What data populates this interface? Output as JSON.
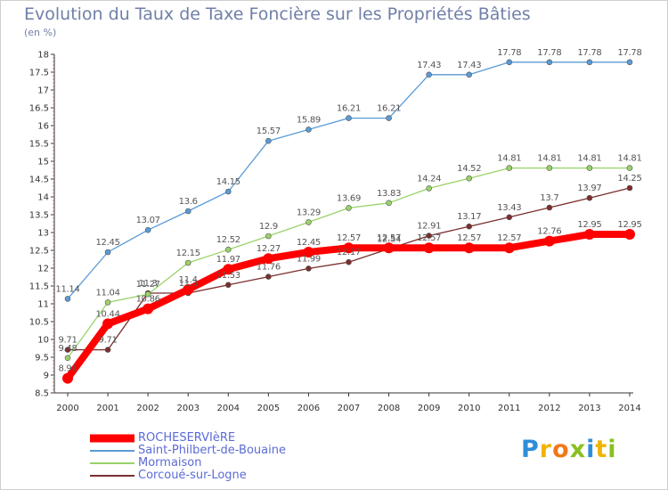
{
  "title": "Evolution du Taux de Taxe Foncière sur les Propriétés Bâties",
  "unit": "(en %)",
  "logo": {
    "letters": [
      "P",
      "r",
      "o",
      "x",
      "i",
      "t",
      "i"
    ],
    "colors": [
      "#2e8ed8",
      "#f0b400",
      "#f07818",
      "#88c020",
      "#2e8ed8",
      "#f0b400",
      "#88c020"
    ]
  },
  "chart_data": {
    "type": "line",
    "title": "Evolution du Taux de Taxe Foncière sur les Propriétés Bâties",
    "ylabel": "(en %)",
    "x": [
      "2000",
      "2001",
      "2002",
      "2003",
      "2004",
      "2005",
      "2006",
      "2007",
      "2008",
      "2009",
      "2010",
      "2011",
      "2012",
      "2013",
      "2014"
    ],
    "ylim": [
      8.5,
      18
    ],
    "yticks": [
      8.5,
      9,
      9.5,
      10,
      10.5,
      11,
      11.5,
      12,
      12.5,
      13,
      13.5,
      14,
      14.5,
      15,
      15.5,
      16,
      16.5,
      17,
      17.5,
      18
    ],
    "ytick_labels": [
      "8.5",
      "9",
      "9.5",
      "10",
      "10.5",
      "11",
      "11.5",
      "12",
      "12.5",
      "13",
      "13.5",
      "14",
      "14.5",
      "15",
      "15.5",
      "16",
      "16.5",
      "17",
      "17.5",
      "18"
    ],
    "grid": false,
    "legend_position": "bottom-left",
    "series": [
      {
        "name": "ROCHESERVIèRE",
        "color": "#ff0000",
        "values": [
          8.91,
          10.44,
          10.86,
          11.4,
          11.97,
          12.27,
          12.45,
          12.57,
          12.57,
          12.57,
          12.57,
          12.57,
          12.76,
          12.95,
          12.95
        ],
        "labels": [
          "8.91",
          "10.44",
          "10.86",
          "11.4",
          "11.97",
          "12.27",
          "12.45",
          "12.57",
          "12.57",
          "12.57",
          "12.57",
          "12.57",
          "12.76",
          "12.95",
          "12.95"
        ]
      },
      {
        "name": "Saint-Philbert-de-Bouaine",
        "color": "#5b9bd5",
        "values": [
          11.14,
          12.45,
          13.07,
          13.6,
          14.15,
          15.57,
          15.89,
          16.21,
          16.21,
          17.43,
          17.43,
          17.78,
          17.78,
          17.78,
          17.78
        ],
        "labels": [
          "11.14",
          "12.45",
          "13.07",
          "13.6",
          "14.15",
          "15.57",
          "15.89",
          "16.21",
          "16.21",
          "17.43",
          "17.43",
          "17.78",
          "17.78",
          "17.78",
          "17.78"
        ]
      },
      {
        "name": "Mormaison",
        "color": "#9ad26a",
        "values": [
          9.48,
          11.04,
          11.27,
          12.15,
          12.52,
          12.9,
          13.29,
          13.69,
          13.83,
          14.24,
          14.52,
          14.81,
          14.81,
          14.81,
          14.81
        ],
        "labels": [
          "9.48",
          "11.04",
          "11.27",
          "12.15",
          "12.52",
          "12.9",
          "13.29",
          "13.69",
          "13.83",
          "14.24",
          "14.52",
          "14.81",
          "14.81",
          "14.81",
          "14.81"
        ]
      },
      {
        "name": "Corcoué-sur-Logne",
        "color": "#7a2e2e",
        "values": [
          9.71,
          9.71,
          11.3,
          11.3,
          11.53,
          11.76,
          11.99,
          12.17,
          12.54,
          12.91,
          13.17,
          13.43,
          13.7,
          13.97,
          14.25
        ],
        "labels": [
          "9.71",
          "9.71",
          "11.3",
          "11.3",
          "11.53",
          "11.76",
          "11.99",
          "12.17",
          "12.54",
          "12.91",
          "13.17",
          "13.43",
          "13.7",
          "13.97",
          "14.25"
        ]
      }
    ]
  }
}
